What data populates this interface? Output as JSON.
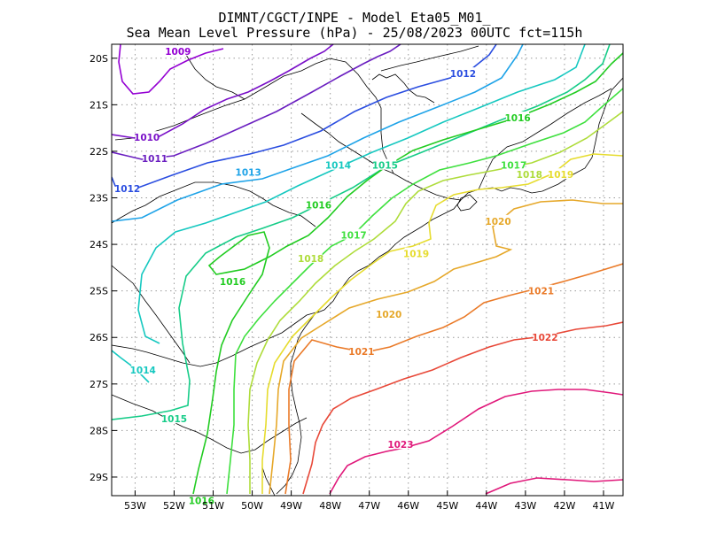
{
  "title": {
    "line1": "DIMNT/CGCT/INPE -  Model Eta05_M01_",
    "line2": "Sea Mean Level Pressure (hPa) - 25/08/2023 00UTC fct=115h"
  },
  "chart_data": {
    "type": "contour-map",
    "variable": "Sea Mean Level Pressure",
    "units": "hPa",
    "model": "Eta05_M01_",
    "init": "25/08/2023 00UTC",
    "forecast_hours": 115,
    "x_ticks": [
      "53W",
      "52W",
      "51W",
      "50W",
      "49W",
      "48W",
      "47W",
      "46W",
      "45W",
      "44W",
      "43W",
      "42W",
      "41W"
    ],
    "y_ticks": [
      "20S",
      "21S",
      "22S",
      "23S",
      "24S",
      "25S",
      "26S",
      "27S",
      "28S",
      "29S"
    ],
    "x_range": [
      -53.6,
      -40.5
    ],
    "y_range": [
      -29.4,
      -19.7
    ],
    "grid": "dotted",
    "colors": {
      "1009": "#9400d3",
      "1010": "#7a10c8",
      "1011": "#6a1ec0",
      "1012": "#2a4de0",
      "1013": "#1ea3e8",
      "1014": "#16c8c0",
      "1015": "#16cc88",
      "1016": "#22cc22",
      "1017": "#3ee03e",
      "1018": "#aedc3a",
      "1019": "#e6dc2e",
      "1020": "#e6a82a",
      "1021": "#ea7a28",
      "1022": "#e84838",
      "1023": "#e0187a"
    },
    "isobars": [
      {
        "level": 1009,
        "labels": [
          {
            "text": "1009",
            "lon": -51.9,
            "lat": -19.85
          }
        ]
      },
      {
        "level": 1010,
        "labels": [
          {
            "text": "1010",
            "lon": -52.7,
            "lat": -21.7
          }
        ]
      },
      {
        "level": 1011,
        "labels": [
          {
            "text": "1011",
            "lon": -52.5,
            "lat": -22.15
          }
        ]
      },
      {
        "level": 1012,
        "labels": [
          {
            "text": "1012",
            "lon": -44.6,
            "lat": -20.33
          },
          {
            "text": "1012",
            "lon": -53.2,
            "lat": -22.8
          }
        ]
      },
      {
        "level": 1013,
        "labels": [
          {
            "text": "1013",
            "lon": -50.1,
            "lat": -22.45
          }
        ]
      },
      {
        "level": 1014,
        "labels": [
          {
            "text": "1014",
            "lon": -47.8,
            "lat": -22.3
          },
          {
            "text": "1014",
            "lon": -52.8,
            "lat": -26.7
          }
        ]
      },
      {
        "level": 1015,
        "labels": [
          {
            "text": "1015",
            "lon": -46.6,
            "lat": -22.3
          },
          {
            "text": "1015",
            "lon": -52.0,
            "lat": -27.75
          }
        ]
      },
      {
        "level": 1016,
        "labels": [
          {
            "text": "1016",
            "lon": -43.2,
            "lat": -21.28
          },
          {
            "text": "1016",
            "lon": -48.3,
            "lat": -23.15
          },
          {
            "text": "1016",
            "lon": -50.5,
            "lat": -24.8
          },
          {
            "text": "1016",
            "lon": -51.3,
            "lat": -29.5
          }
        ]
      },
      {
        "level": 1017,
        "labels": [
          {
            "text": "1017",
            "lon": -43.3,
            "lat": -22.3
          },
          {
            "text": "1017",
            "lon": -47.4,
            "lat": -23.8
          }
        ]
      },
      {
        "level": 1018,
        "labels": [
          {
            "text": "1018",
            "lon": -42.9,
            "lat": -22.5
          },
          {
            "text": "1018",
            "lon": -48.5,
            "lat": -24.3
          }
        ]
      },
      {
        "level": 1019,
        "labels": [
          {
            "text": "1019",
            "lon": -42.1,
            "lat": -22.5
          },
          {
            "text": "1019",
            "lon": -45.8,
            "lat": -24.2
          }
        ]
      },
      {
        "level": 1020,
        "labels": [
          {
            "text": "1020",
            "lon": -43.7,
            "lat": -23.5
          },
          {
            "text": "1020",
            "lon": -46.5,
            "lat": -25.5
          }
        ]
      },
      {
        "level": 1021,
        "labels": [
          {
            "text": "1021",
            "lon": -42.6,
            "lat": -25.0
          },
          {
            "text": "1021",
            "lon": -47.2,
            "lat": -26.3
          }
        ]
      },
      {
        "level": 1022,
        "labels": [
          {
            "text": "1022",
            "lon": -42.5,
            "lat": -26.0
          }
        ]
      },
      {
        "level": 1023,
        "labels": [
          {
            "text": "1023",
            "lon": -46.2,
            "lat": -28.3
          }
        ]
      }
    ]
  }
}
